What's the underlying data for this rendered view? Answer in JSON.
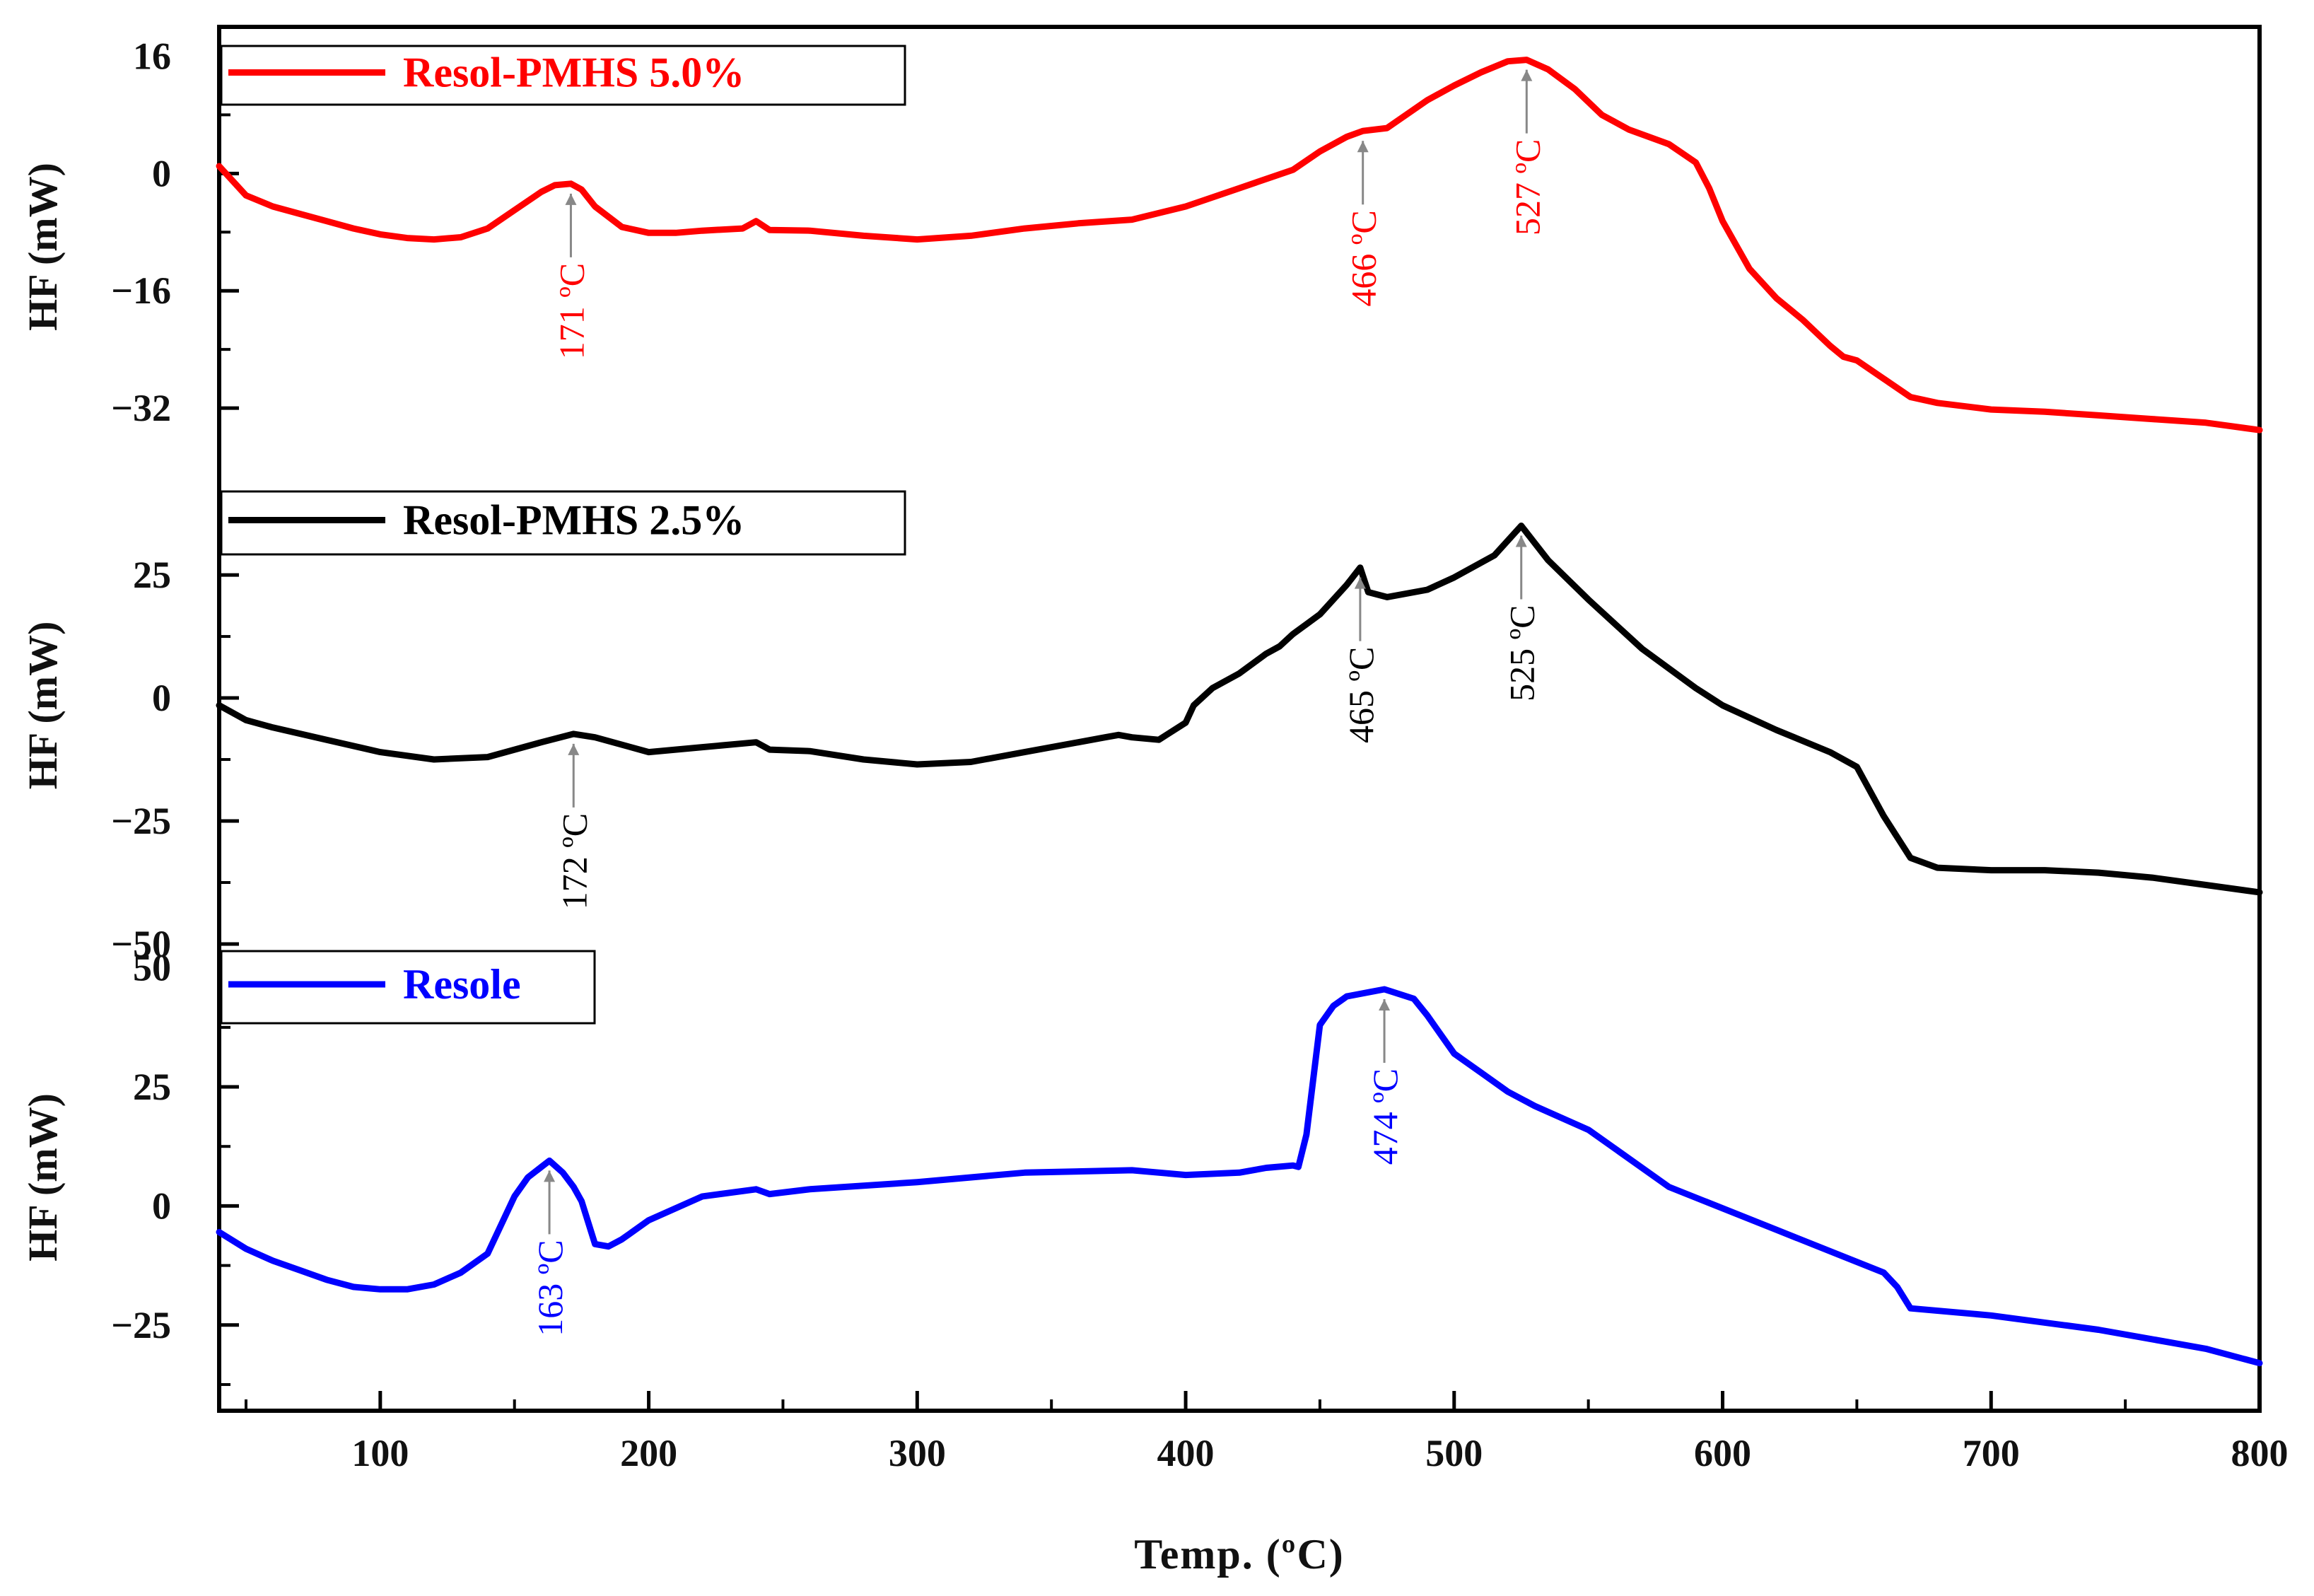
{
  "chart_data": [
    {
      "type": "line",
      "name": "Resol-PMHS 5.0%",
      "color": "#ff0000",
      "ylabel": "HF (mW)",
      "ylim": [
        -40,
        20
      ],
      "yticks": [
        16,
        0,
        -16,
        -32
      ],
      "ytick_labels": [
        "16",
        "0",
        "−16",
        "−32"
      ],
      "x": [
        40,
        50,
        60,
        70,
        80,
        90,
        100,
        110,
        120,
        130,
        140,
        150,
        160,
        165,
        171,
        175,
        180,
        190,
        200,
        210,
        220,
        235,
        240,
        245,
        260,
        280,
        300,
        320,
        340,
        360,
        380,
        400,
        420,
        440,
        450,
        460,
        466,
        475,
        490,
        500,
        510,
        520,
        527,
        535,
        545,
        555,
        565,
        580,
        590,
        595,
        600,
        610,
        620,
        630,
        640,
        645,
        650,
        660,
        670,
        680,
        700,
        720,
        740,
        760,
        780,
        800
      ],
      "y": [
        1,
        -3,
        -4.5,
        -5.5,
        -6.5,
        -7.5,
        -8.3,
        -8.8,
        -9.0,
        -8.7,
        -7.5,
        -5.0,
        -2.5,
        -1.6,
        -1.4,
        -2.2,
        -4.5,
        -7.3,
        -8.1,
        -8.1,
        -7.8,
        -7.5,
        -6.5,
        -7.7,
        -7.8,
        -8.5,
        -9.0,
        -8.5,
        -7.5,
        -6.8,
        -6.3,
        -4.5,
        -2.0,
        0.5,
        3.0,
        5.0,
        5.8,
        6.2,
        10.0,
        12.0,
        13.8,
        15.3,
        15.5,
        14.2,
        11.5,
        8.0,
        6.0,
        4.0,
        1.5,
        -2.0,
        -6.5,
        -13.0,
        -17.0,
        -20.0,
        -23.5,
        -25.0,
        -25.5,
        -28.0,
        -30.5,
        -31.3,
        -32.2,
        -32.5,
        -33.0,
        -33.5,
        -34.0,
        -35.0
      ],
      "annotations": [
        {
          "x": 171,
          "label": "171 ºC"
        },
        {
          "x": 466,
          "label": "466 ºC"
        },
        {
          "x": 527,
          "label": "527 ºC"
        }
      ]
    },
    {
      "type": "line",
      "name": "Resol-PMHS 2.5%",
      "color": "#000000",
      "ylabel": "HF (mW)",
      "ylim": [
        -50,
        47
      ],
      "yticks": [
        25,
        0,
        -25,
        -50
      ],
      "ytick_labels": [
        "25",
        "0",
        "−25",
        "−50"
      ],
      "x": [
        40,
        50,
        60,
        80,
        100,
        120,
        140,
        160,
        172,
        180,
        200,
        220,
        240,
        245,
        260,
        280,
        300,
        320,
        340,
        360,
        370,
        375,
        380,
        390,
        400,
        403,
        410,
        420,
        430,
        435,
        440,
        445,
        450,
        460,
        465,
        468,
        475,
        490,
        500,
        515,
        525,
        535,
        550,
        570,
        590,
        600,
        620,
        640,
        650,
        660,
        670,
        680,
        700,
        720,
        740,
        760,
        780,
        800
      ],
      "y": [
        -1.5,
        -4.5,
        -6.0,
        -8.5,
        -11.0,
        -12.5,
        -12.0,
        -9.0,
        -7.3,
        -8.0,
        -11.0,
        -10.0,
        -9.0,
        -10.5,
        -10.8,
        -12.5,
        -13.5,
        -13.0,
        -11.0,
        -9.0,
        -8.0,
        -7.5,
        -8.0,
        -8.5,
        -5.0,
        -1.5,
        2.0,
        5.0,
        9.0,
        10.5,
        13.0,
        15.0,
        17.0,
        23.0,
        26.5,
        21.5,
        20.5,
        22.0,
        24.5,
        29.0,
        35.0,
        28.0,
        20.0,
        10.0,
        2.0,
        -1.5,
        -6.5,
        -11.0,
        -14.0,
        -24.0,
        -32.5,
        -34.5,
        -35.0,
        -35.0,
        -35.5,
        -36.5,
        -38.0,
        -39.5
      ],
      "annotations": [
        {
          "x": 172,
          "label": "172 ºC"
        },
        {
          "x": 465,
          "label": "465 ºC"
        },
        {
          "x": 525,
          "label": "525 ºC"
        }
      ]
    },
    {
      "type": "line",
      "name": "Resole",
      "color": "#0000ff",
      "ylabel": "HF (mW)",
      "ylim": [
        -43,
        55
      ],
      "yticks": [
        50,
        25,
        0,
        -25
      ],
      "ytick_labels": [
        "50",
        "25",
        "0",
        "−25"
      ],
      "x": [
        40,
        50,
        60,
        70,
        80,
        90,
        100,
        110,
        120,
        130,
        140,
        150,
        155,
        163,
        168,
        172,
        175,
        180,
        185,
        190,
        200,
        220,
        240,
        245,
        260,
        300,
        340,
        380,
        400,
        420,
        430,
        440,
        442,
        445,
        450,
        455,
        460,
        474,
        485,
        490,
        495,
        500,
        510,
        520,
        530,
        550,
        580,
        620,
        660,
        665,
        670,
        700,
        740,
        780,
        800
      ],
      "y": [
        -5.5,
        -9.0,
        -11.5,
        -13.5,
        -15.5,
        -17.0,
        -17.5,
        -17.5,
        -16.5,
        -14.0,
        -10.0,
        2.0,
        6.0,
        9.5,
        7.0,
        4.0,
        1.0,
        -8.0,
        -8.5,
        -7.0,
        -3.0,
        2.0,
        3.5,
        2.5,
        3.5,
        5.0,
        7.0,
        7.5,
        6.5,
        7.0,
        8.0,
        8.5,
        8.2,
        15.0,
        38.0,
        42.0,
        44.0,
        45.5,
        43.5,
        40.0,
        36.0,
        32.0,
        28.0,
        24.0,
        21.0,
        16.0,
        4.0,
        -5.0,
        -14.0,
        -17.0,
        -21.5,
        -23.0,
        -26.0,
        -30.0,
        -33.0
      ],
      "annotations": [
        {
          "x": 163,
          "label": "163 ºC"
        },
        {
          "x": 474,
          "label": "474 ºC"
        }
      ]
    }
  ],
  "xaxis": {
    "label": "Temp. (ºC)",
    "xlim": [
      40,
      800
    ],
    "ticks": [
      100,
      200,
      300,
      400,
      500,
      600,
      700,
      800
    ],
    "tick_labels": [
      "100",
      "200",
      "300",
      "400",
      "500",
      "600",
      "700",
      "800"
    ]
  }
}
